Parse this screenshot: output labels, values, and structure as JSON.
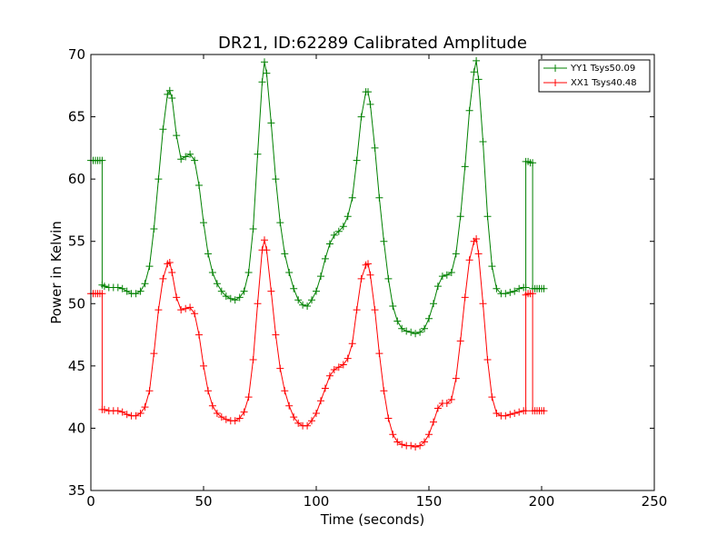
{
  "chart_data": {
    "type": "line",
    "title": "DR21, ID:62289 Calibrated Amplitude",
    "xlabel": "Time (seconds)",
    "ylabel": "Power in Kelvin",
    "xlim": [
      0,
      250
    ],
    "ylim": [
      35,
      70
    ],
    "xticks": [
      0,
      50,
      100,
      150,
      200,
      250
    ],
    "yticks": [
      35,
      40,
      45,
      50,
      55,
      60,
      65,
      70
    ],
    "grid": false,
    "legend_position": "top-right",
    "series": [
      {
        "name": "YY1 Tsys50.09",
        "color": "#008000",
        "marker": "plus",
        "points": [
          [
            0,
            61.5
          ],
          [
            1,
            61.5
          ],
          [
            2,
            61.5
          ],
          [
            3,
            61.5
          ],
          [
            4,
            61.5
          ],
          [
            5,
            61.5
          ],
          [
            5,
            51.5
          ],
          [
            6,
            51.4
          ],
          [
            8,
            51.3
          ],
          [
            10,
            51.3
          ],
          [
            12,
            51.3
          ],
          [
            14,
            51.2
          ],
          [
            16,
            51
          ],
          [
            18,
            50.8
          ],
          [
            20,
            50.8
          ],
          [
            22,
            51
          ],
          [
            24,
            51.6
          ],
          [
            26,
            53
          ],
          [
            28,
            56
          ],
          [
            30,
            60
          ],
          [
            32,
            64
          ],
          [
            34,
            66.8
          ],
          [
            35,
            67.1
          ],
          [
            36,
            66.5
          ],
          [
            38,
            63.5
          ],
          [
            40,
            61.6
          ],
          [
            42,
            61.8
          ],
          [
            44,
            62
          ],
          [
            46,
            61.5
          ],
          [
            48,
            59.5
          ],
          [
            50,
            56.5
          ],
          [
            52,
            54
          ],
          [
            54,
            52.5
          ],
          [
            56,
            51.6
          ],
          [
            58,
            51
          ],
          [
            60,
            50.6
          ],
          [
            62,
            50.4
          ],
          [
            64,
            50.3
          ],
          [
            66,
            50.5
          ],
          [
            68,
            51
          ],
          [
            70,
            52.5
          ],
          [
            72,
            56
          ],
          [
            74,
            62
          ],
          [
            76,
            67.8
          ],
          [
            77,
            69.4
          ],
          [
            78,
            68.5
          ],
          [
            80,
            64.5
          ],
          [
            82,
            60
          ],
          [
            84,
            56.5
          ],
          [
            86,
            54
          ],
          [
            88,
            52.5
          ],
          [
            90,
            51.2
          ],
          [
            92,
            50.3
          ],
          [
            94,
            49.9
          ],
          [
            96,
            49.8
          ],
          [
            98,
            50.3
          ],
          [
            100,
            51
          ],
          [
            102,
            52.2
          ],
          [
            104,
            53.6
          ],
          [
            106,
            54.8
          ],
          [
            108,
            55.5
          ],
          [
            110,
            55.8
          ],
          [
            112,
            56.2
          ],
          [
            114,
            57
          ],
          [
            116,
            58.5
          ],
          [
            118,
            61.5
          ],
          [
            120,
            65
          ],
          [
            122,
            67
          ],
          [
            123,
            67
          ],
          [
            124,
            66
          ],
          [
            126,
            62.5
          ],
          [
            128,
            58.5
          ],
          [
            130,
            55
          ],
          [
            132,
            52
          ],
          [
            134,
            49.8
          ],
          [
            136,
            48.6
          ],
          [
            138,
            48
          ],
          [
            140,
            47.8
          ],
          [
            142,
            47.7
          ],
          [
            144,
            47.6
          ],
          [
            146,
            47.7
          ],
          [
            148,
            48
          ],
          [
            150,
            48.8
          ],
          [
            152,
            50
          ],
          [
            154,
            51.4
          ],
          [
            156,
            52.2
          ],
          [
            158,
            52.3
          ],
          [
            160,
            52.5
          ],
          [
            162,
            54
          ],
          [
            164,
            57
          ],
          [
            166,
            61
          ],
          [
            168,
            65.5
          ],
          [
            170,
            68.6
          ],
          [
            171,
            69.5
          ],
          [
            172,
            68
          ],
          [
            174,
            63
          ],
          [
            176,
            57
          ],
          [
            178,
            53
          ],
          [
            180,
            51.2
          ],
          [
            182,
            50.8
          ],
          [
            184,
            50.8
          ],
          [
            186,
            50.9
          ],
          [
            188,
            51
          ],
          [
            190,
            51.2
          ],
          [
            192,
            51.3
          ],
          [
            193,
            51.3
          ],
          [
            193,
            61.4
          ],
          [
            194,
            61.4
          ],
          [
            195,
            61.3
          ],
          [
            196,
            61.3
          ],
          [
            196,
            51.2
          ],
          [
            197,
            51.2
          ],
          [
            198,
            51.2
          ],
          [
            199,
            51.2
          ],
          [
            200,
            51.2
          ],
          [
            201,
            51.2
          ]
        ]
      },
      {
        "name": "XX1 Tsys40.48",
        "color": "#ff0000",
        "marker": "plus",
        "points": [
          [
            0,
            50.8
          ],
          [
            1,
            50.8
          ],
          [
            2,
            50.8
          ],
          [
            3,
            50.8
          ],
          [
            4,
            50.8
          ],
          [
            5,
            50.8
          ],
          [
            5,
            41.5
          ],
          [
            6,
            41.5
          ],
          [
            8,
            41.4
          ],
          [
            10,
            41.4
          ],
          [
            12,
            41.4
          ],
          [
            14,
            41.3
          ],
          [
            16,
            41.1
          ],
          [
            18,
            41
          ],
          [
            20,
            41
          ],
          [
            22,
            41.2
          ],
          [
            24,
            41.7
          ],
          [
            26,
            43
          ],
          [
            28,
            46
          ],
          [
            30,
            49.5
          ],
          [
            32,
            52
          ],
          [
            34,
            53.2
          ],
          [
            35,
            53.3
          ],
          [
            36,
            52.5
          ],
          [
            38,
            50.5
          ],
          [
            40,
            49.5
          ],
          [
            42,
            49.6
          ],
          [
            44,
            49.7
          ],
          [
            46,
            49.2
          ],
          [
            48,
            47.5
          ],
          [
            50,
            45
          ],
          [
            52,
            43
          ],
          [
            54,
            41.8
          ],
          [
            56,
            41.2
          ],
          [
            58,
            40.9
          ],
          [
            60,
            40.7
          ],
          [
            62,
            40.6
          ],
          [
            64,
            40.6
          ],
          [
            66,
            40.8
          ],
          [
            68,
            41.3
          ],
          [
            70,
            42.5
          ],
          [
            72,
            45.5
          ],
          [
            74,
            50
          ],
          [
            76,
            54.3
          ],
          [
            77,
            55.1
          ],
          [
            78,
            54.3
          ],
          [
            80,
            51
          ],
          [
            82,
            47.5
          ],
          [
            84,
            44.8
          ],
          [
            86,
            43
          ],
          [
            88,
            41.8
          ],
          [
            90,
            40.9
          ],
          [
            92,
            40.4
          ],
          [
            94,
            40.2
          ],
          [
            96,
            40.2
          ],
          [
            98,
            40.6
          ],
          [
            100,
            41.2
          ],
          [
            102,
            42.2
          ],
          [
            104,
            43.2
          ],
          [
            106,
            44.2
          ],
          [
            108,
            44.7
          ],
          [
            110,
            44.9
          ],
          [
            112,
            45.1
          ],
          [
            114,
            45.6
          ],
          [
            116,
            46.8
          ],
          [
            118,
            49.5
          ],
          [
            120,
            52
          ],
          [
            122,
            53.1
          ],
          [
            123,
            53.2
          ],
          [
            124,
            52.3
          ],
          [
            126,
            49.5
          ],
          [
            128,
            46
          ],
          [
            130,
            43
          ],
          [
            132,
            40.8
          ],
          [
            134,
            39.5
          ],
          [
            136,
            38.9
          ],
          [
            138,
            38.7
          ],
          [
            140,
            38.6
          ],
          [
            142,
            38.6
          ],
          [
            144,
            38.5
          ],
          [
            146,
            38.6
          ],
          [
            148,
            38.9
          ],
          [
            150,
            39.5
          ],
          [
            152,
            40.5
          ],
          [
            154,
            41.6
          ],
          [
            156,
            42
          ],
          [
            158,
            42
          ],
          [
            160,
            42.3
          ],
          [
            162,
            44
          ],
          [
            164,
            47
          ],
          [
            166,
            50.5
          ],
          [
            168,
            53.5
          ],
          [
            170,
            55
          ],
          [
            171,
            55.2
          ],
          [
            172,
            54
          ],
          [
            174,
            50
          ],
          [
            176,
            45.5
          ],
          [
            178,
            42.5
          ],
          [
            180,
            41.2
          ],
          [
            182,
            41
          ],
          [
            184,
            41
          ],
          [
            186,
            41.1
          ],
          [
            188,
            41.2
          ],
          [
            190,
            41.3
          ],
          [
            192,
            41.4
          ],
          [
            193,
            41.4
          ],
          [
            193,
            50.7
          ],
          [
            194,
            50.8
          ],
          [
            195,
            50.8
          ],
          [
            196,
            50.8
          ],
          [
            196,
            41.4
          ],
          [
            197,
            41.4
          ],
          [
            198,
            41.4
          ],
          [
            199,
            41.4
          ],
          [
            200,
            41.4
          ],
          [
            201,
            41.4
          ]
        ]
      }
    ]
  }
}
